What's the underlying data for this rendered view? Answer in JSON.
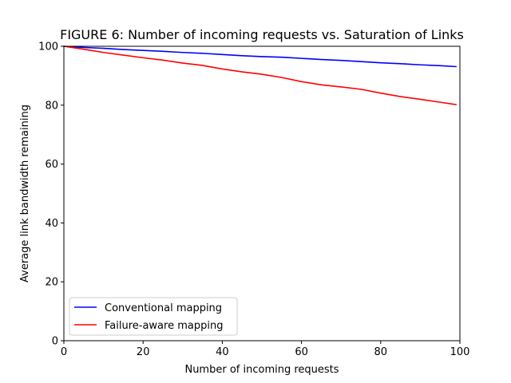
{
  "chart_data": {
    "type": "line",
    "title": "FIGURE 6: Number of incoming requests vs. Saturation of Links",
    "xlabel": "Number of incoming requests",
    "ylabel": "Average link bandwidth remaining",
    "xlim": [
      0,
      100
    ],
    "ylim": [
      0,
      100
    ],
    "xticks": [
      0,
      20,
      40,
      60,
      80,
      100
    ],
    "yticks": [
      0,
      20,
      40,
      60,
      80,
      100
    ],
    "grid": false,
    "legend_position": "lower-left",
    "series": [
      {
        "name": "Conventional mapping",
        "color": "#0000ff",
        "x": [
          0,
          5,
          10,
          15,
          20,
          25,
          30,
          35,
          40,
          45,
          50,
          55,
          60,
          65,
          70,
          75,
          80,
          85,
          90,
          95,
          99
        ],
        "y": [
          100,
          99.6,
          99.3,
          98.9,
          98.6,
          98.3,
          97.9,
          97.6,
          97.2,
          96.8,
          96.5,
          96.3,
          95.9,
          95.5,
          95.2,
          94.8,
          94.4,
          94.1,
          93.7,
          93.4,
          93.1
        ]
      },
      {
        "name": "Failure-aware mapping",
        "color": "#ff0000",
        "x": [
          0,
          5,
          10,
          15,
          20,
          25,
          30,
          35,
          40,
          45,
          50,
          55,
          60,
          65,
          70,
          75,
          80,
          85,
          90,
          95,
          99
        ],
        "y": [
          100,
          99.0,
          97.9,
          97.0,
          96.1,
          95.3,
          94.3,
          93.5,
          92.3,
          91.3,
          90.5,
          89.4,
          88.0,
          86.9,
          86.2,
          85.4,
          84.1,
          82.9,
          82.0,
          81.0,
          80.2
        ]
      }
    ]
  }
}
